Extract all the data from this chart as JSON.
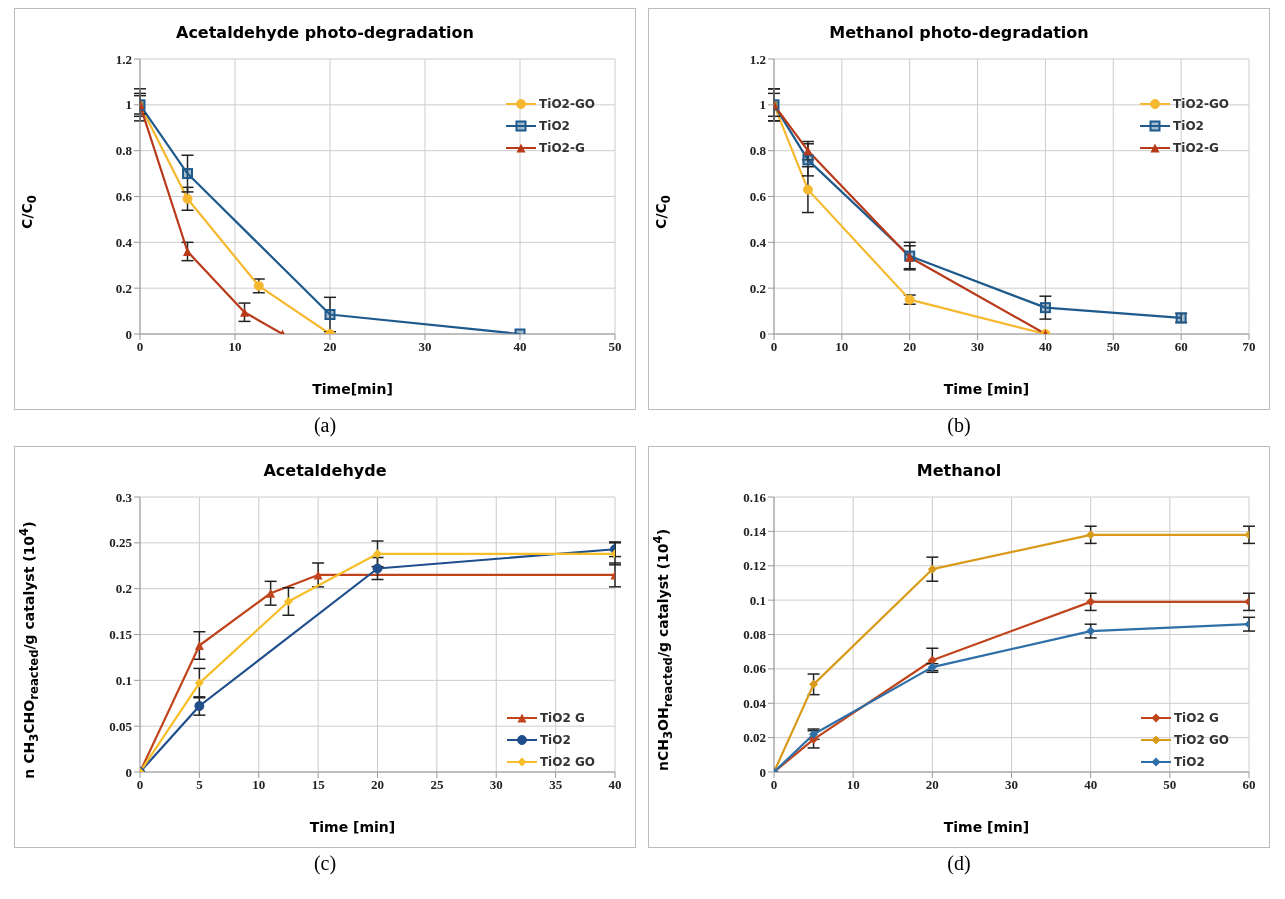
{
  "chart_data": [
    {
      "type": "line",
      "title": "Acetaldehyde photo-degradation",
      "xlabel": "Time[min]",
      "ylabel": "C/C$_{0}$",
      "annotations": [
        "(a)"
      ],
      "xlim": [
        0,
        50
      ],
      "xticks": [
        0,
        10,
        20,
        30,
        40,
        50
      ],
      "ylim": [
        0,
        1.2
      ],
      "yticks": [
        0,
        0.2,
        0.4,
        0.6,
        0.8,
        1,
        1.2
      ],
      "grid": true,
      "legend": "top right",
      "series": [
        {
          "name": "TiO2-GO",
          "color": "#f5b82e",
          "marker": "circle",
          "x": [
            0,
            5,
            12.5,
            20
          ],
          "values": [
            1,
            0.59,
            0.21,
            0
          ],
          "errors": [
            0.05,
            0.05,
            0.03,
            null
          ]
        },
        {
          "name": "TiO2",
          "color": "#1f5a8c",
          "marker": "square",
          "x": [
            0,
            5,
            20,
            40
          ],
          "values": [
            1,
            0.7,
            0.085,
            0
          ],
          "errors": [
            0.07,
            0.08,
            0.075,
            null
          ]
        },
        {
          "name": "TiO2-G",
          "color": "#b83a1a",
          "marker": "triangle",
          "x": [
            0,
            5,
            11,
            15
          ],
          "values": [
            1,
            0.36,
            0.095,
            0
          ],
          "errors": [
            0.04,
            0.04,
            0.04,
            null
          ]
        }
      ]
    },
    {
      "type": "line",
      "title": "Methanol photo-degradation",
      "xlabel": "Time [min]",
      "ylabel": "C/C$_{0}$",
      "annotations": [
        "(b)"
      ],
      "xlim": [
        0,
        70
      ],
      "xticks": [
        0,
        10,
        20,
        30,
        40,
        50,
        60,
        70
      ],
      "ylim": [
        0,
        1.2
      ],
      "yticks": [
        0,
        0.2,
        0.4,
        0.6,
        0.8,
        1,
        1.2
      ],
      "grid": true,
      "legend": "top right",
      "series": [
        {
          "name": "TiO2-GO",
          "color": "#f5b82e",
          "marker": "circle",
          "x": [
            0,
            5,
            20,
            40
          ],
          "values": [
            1,
            0.63,
            0.15,
            0
          ],
          "errors": [
            0.07,
            0.1,
            0.02,
            null
          ]
        },
        {
          "name": "TiO2",
          "color": "#1f5a8c",
          "marker": "square",
          "x": [
            0,
            5,
            20,
            40,
            60
          ],
          "values": [
            1,
            0.76,
            0.34,
            0.115,
            0.07
          ],
          "errors": [
            0.07,
            0.07,
            0.06,
            0.05,
            0.02
          ]
        },
        {
          "name": "TiO2-G",
          "color": "#b83a1a",
          "marker": "triangle",
          "x": [
            0,
            5,
            20,
            40
          ],
          "values": [
            1,
            0.8,
            0.335,
            0
          ],
          "errors": [
            0.05,
            0.04,
            0.05,
            null
          ]
        }
      ]
    },
    {
      "type": "line",
      "title": "Acetaldehyde",
      "xlabel": "Time [min]",
      "ylabel": "n CH$_{3}$CHO$_{reacted}$/g catalyst (10$^{4}$)",
      "annotations": [
        "(c)"
      ],
      "xlim": [
        0,
        40
      ],
      "xticks": [
        0,
        5,
        10,
        15,
        20,
        25,
        30,
        35,
        40
      ],
      "ylim": [
        0,
        0.3
      ],
      "yticks": [
        0,
        0.05,
        0.1,
        0.15,
        0.2,
        0.25,
        0.3
      ],
      "grid": true,
      "legend": "bottom right",
      "series": [
        {
          "name": "TiO2 G",
          "color": "#c0441c",
          "marker": "triangle",
          "x": [
            0,
            5,
            11,
            15,
            40
          ],
          "values": [
            0,
            0.138,
            0.195,
            0.215,
            0.215
          ],
          "errors": [
            null,
            0.015,
            0.013,
            0.013,
            0.013
          ]
        },
        {
          "name": "TiO2",
          "color": "#1f4e8c",
          "marker": "circle",
          "x": [
            0,
            5,
            20,
            40
          ],
          "values": [
            0,
            0.072,
            0.222,
            0.243
          ],
          "errors": [
            null,
            0.01,
            0.012,
            0.008
          ]
        },
        {
          "name": "TiO2 GO",
          "color": "#f7be2a",
          "marker": "diamond",
          "x": [
            0,
            5,
            12.5,
            20,
            40
          ],
          "values": [
            0,
            0.097,
            0.186,
            0.238,
            0.238
          ],
          "errors": [
            null,
            0.016,
            0.015,
            0.014,
            0.012
          ]
        }
      ]
    },
    {
      "type": "line",
      "title": "Methanol",
      "xlabel": "Time [min]",
      "ylabel": "nCH$_{3}$OH$_{reacted}$/g catalyst (10$^{4}$)",
      "annotations": [
        "(d)"
      ],
      "xlim": [
        0,
        60
      ],
      "xticks": [
        0,
        10,
        20,
        30,
        40,
        50,
        60
      ],
      "ylim": [
        0,
        0.16
      ],
      "yticks": [
        0,
        0.02,
        0.04,
        0.06,
        0.08,
        0.1,
        0.12,
        0.14,
        0.16
      ],
      "grid": true,
      "legend": "bottom right",
      "series": [
        {
          "name": "TiO2 G",
          "color": "#c0441c",
          "marker": "diamond",
          "x": [
            0,
            5,
            20,
            40,
            60
          ],
          "values": [
            0,
            0.019,
            0.065,
            0.099,
            0.099
          ],
          "errors": [
            null,
            0.005,
            0.007,
            0.005,
            0.005
          ]
        },
        {
          "name": "TiO2 GO",
          "color": "#d99a1a",
          "marker": "diamond",
          "x": [
            0,
            5,
            20,
            40,
            60
          ],
          "values": [
            0,
            0.051,
            0.118,
            0.138,
            0.138
          ],
          "errors": [
            null,
            0.006,
            0.007,
            0.005,
            0.005
          ]
        },
        {
          "name": "TiO2",
          "color": "#2e6fa8",
          "marker": "diamond",
          "x": [
            0,
            5,
            20,
            40,
            60
          ],
          "values": [
            0,
            0.022,
            0.061,
            0.082,
            0.086
          ],
          "errors": [
            null,
            0.003,
            0.002,
            0.004,
            0.004
          ]
        }
      ]
    }
  ]
}
